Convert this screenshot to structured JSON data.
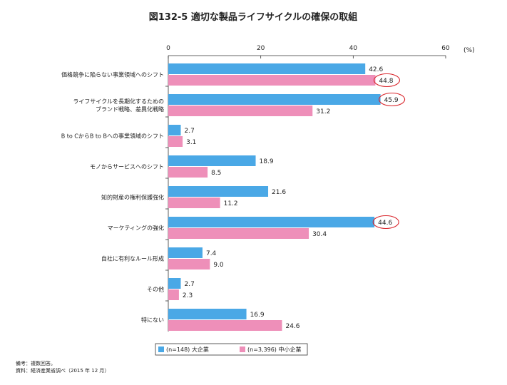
{
  "chart_data": {
    "type": "bar",
    "orientation": "horizontal",
    "title": "図132-5 適切な製品ライフサイクルの確保の取組",
    "unit_label": "(%)",
    "xlim": [
      0,
      60
    ],
    "ticks": [
      0,
      20,
      40,
      60
    ],
    "categories": [
      [
        "価格競争に陥らない事業領域へのシフト"
      ],
      [
        "ライフサイクルを長期化するための",
        "ブランド戦略、差異化戦略"
      ],
      [
        "B to CからB to Bへの事業領域のシフト"
      ],
      [
        "モノからサービスへのシフト"
      ],
      [
        "知的財産の権利保護強化"
      ],
      [
        "マーケティングの強化"
      ],
      [
        "自社に有利なルール形成"
      ],
      [
        "その他"
      ],
      [
        "特にない"
      ]
    ],
    "series": [
      {
        "name": "(n=148) 大企業",
        "color": "#4aa8e6",
        "values": [
          42.6,
          45.9,
          2.7,
          18.9,
          21.6,
          44.6,
          7.4,
          2.7,
          16.9
        ],
        "labels": [
          "42.6",
          "45.9",
          "2.7",
          "18.9",
          "21.6",
          "44.6",
          "7.4",
          "2.7",
          "16.9"
        ]
      },
      {
        "name": "(n=3,396) 中小企業",
        "color": "#ee8fb9",
        "values": [
          44.8,
          31.2,
          3.1,
          8.5,
          11.2,
          30.4,
          9.0,
          2.3,
          24.6
        ],
        "labels": [
          "44.8",
          "31.2",
          "3.1",
          "8.5",
          "11.2",
          "30.4",
          "9.0",
          "2.3",
          "24.6"
        ]
      }
    ],
    "highlighted": [
      {
        "series": 1,
        "index": 0
      },
      {
        "series": 0,
        "index": 1
      },
      {
        "series": 0,
        "index": 5
      }
    ],
    "highlight_color": "#d9262c",
    "legend_position": "bottom",
    "notes": [
      "備考：複数回答。",
      "資料：経済産業省調べ（2015 年 12 月）"
    ]
  }
}
